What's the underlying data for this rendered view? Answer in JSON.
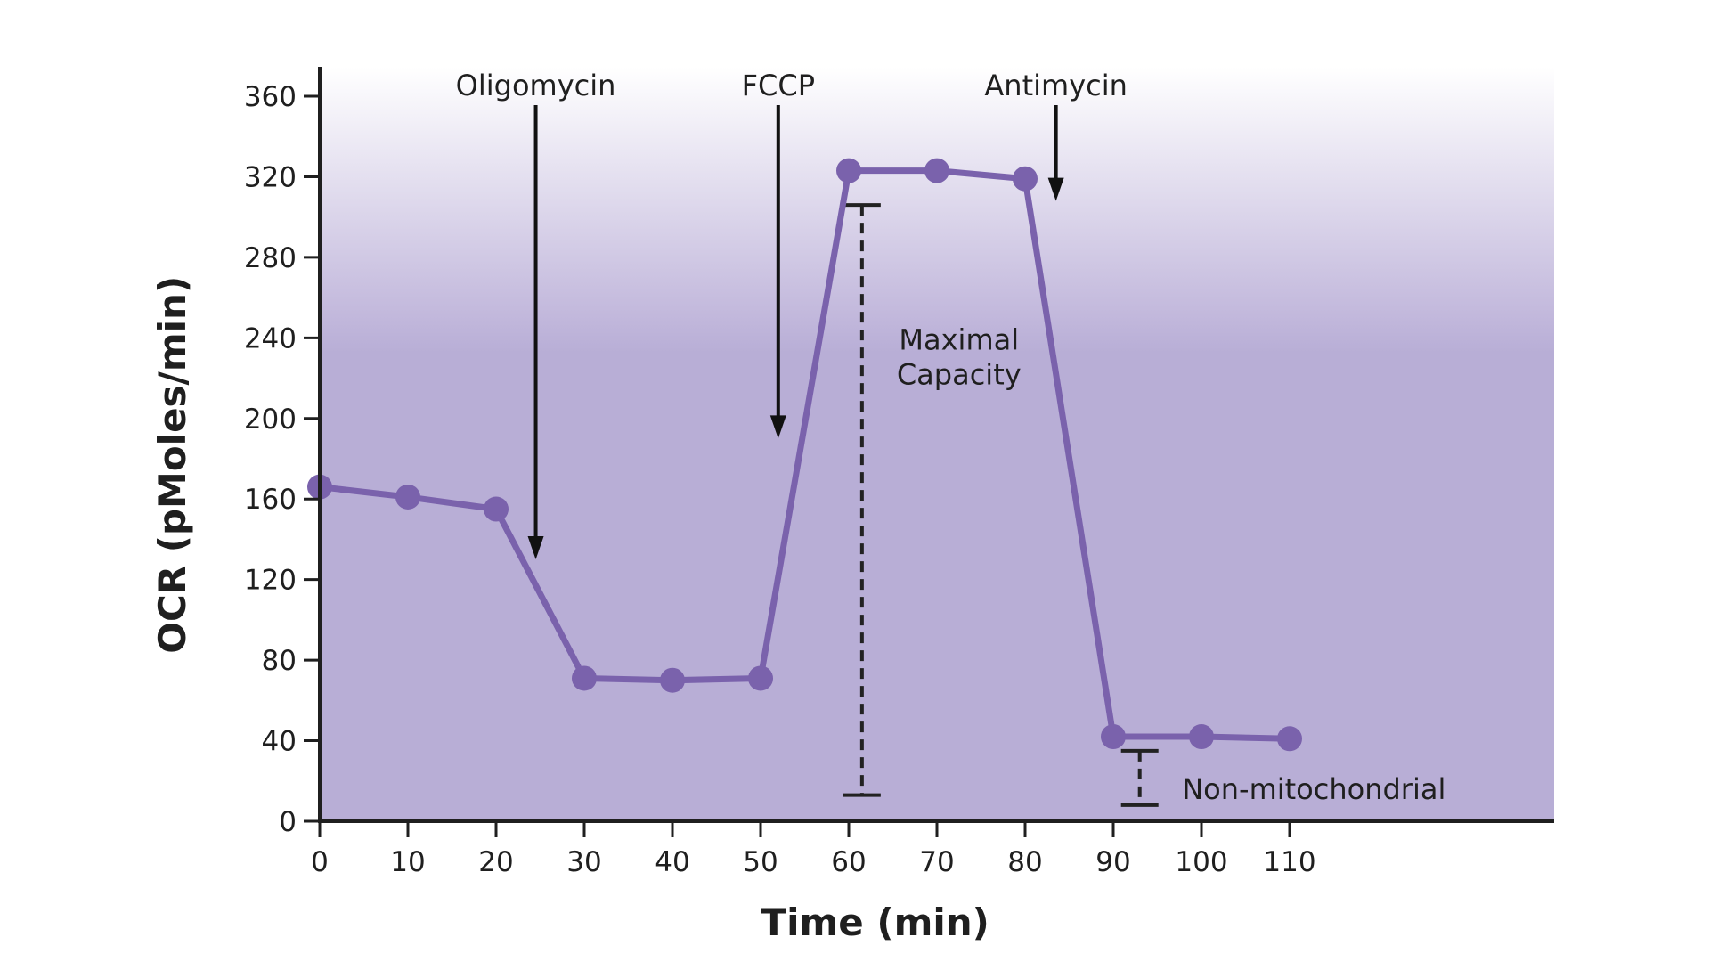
{
  "chart_data": {
    "type": "line",
    "xlabel": "Time (min)",
    "ylabel": "OCR (pMoles/min)",
    "xlim": [
      0,
      140
    ],
    "ylim": [
      0,
      360
    ],
    "xticks": [
      0,
      10,
      20,
      30,
      40,
      50,
      60,
      70,
      80,
      90,
      100,
      110
    ],
    "yticks": [
      0,
      40,
      80,
      120,
      160,
      200,
      240,
      280,
      320,
      360
    ],
    "grid": false,
    "series": [
      {
        "x": [
          0,
          10,
          20,
          30,
          40,
          50,
          60,
          70,
          80,
          90,
          100,
          110
        ],
        "y": [
          166,
          161,
          155,
          71,
          70,
          71,
          323,
          323,
          319,
          42,
          42,
          41
        ]
      }
    ],
    "injections": [
      {
        "label": "Oligomycin",
        "x": 24.5,
        "y_end": 130
      },
      {
        "label": "FCCP",
        "x": 52,
        "y_end": 190
      },
      {
        "label": "Antimycin",
        "x": 83.5,
        "y_end": 308
      }
    ],
    "ranges": [
      {
        "label": "Maximal Capacity",
        "label_lines": [
          "Maximal",
          "Capacity"
        ],
        "x": 61.5,
        "y_low": 13,
        "y_high": 306
      },
      {
        "label": "Non-mitochondrial",
        "label_lines": [
          "Non-mitochondrial"
        ],
        "x": 93,
        "y_low": 8,
        "y_high": 35
      }
    ],
    "colors": {
      "line": "#7a62ac",
      "marker": "#7a62ac",
      "band_top": "#ffffff",
      "band_mid": "#c2b8dc",
      "band_fill": "#b8aed6",
      "axis": "#1f1f1f"
    }
  }
}
